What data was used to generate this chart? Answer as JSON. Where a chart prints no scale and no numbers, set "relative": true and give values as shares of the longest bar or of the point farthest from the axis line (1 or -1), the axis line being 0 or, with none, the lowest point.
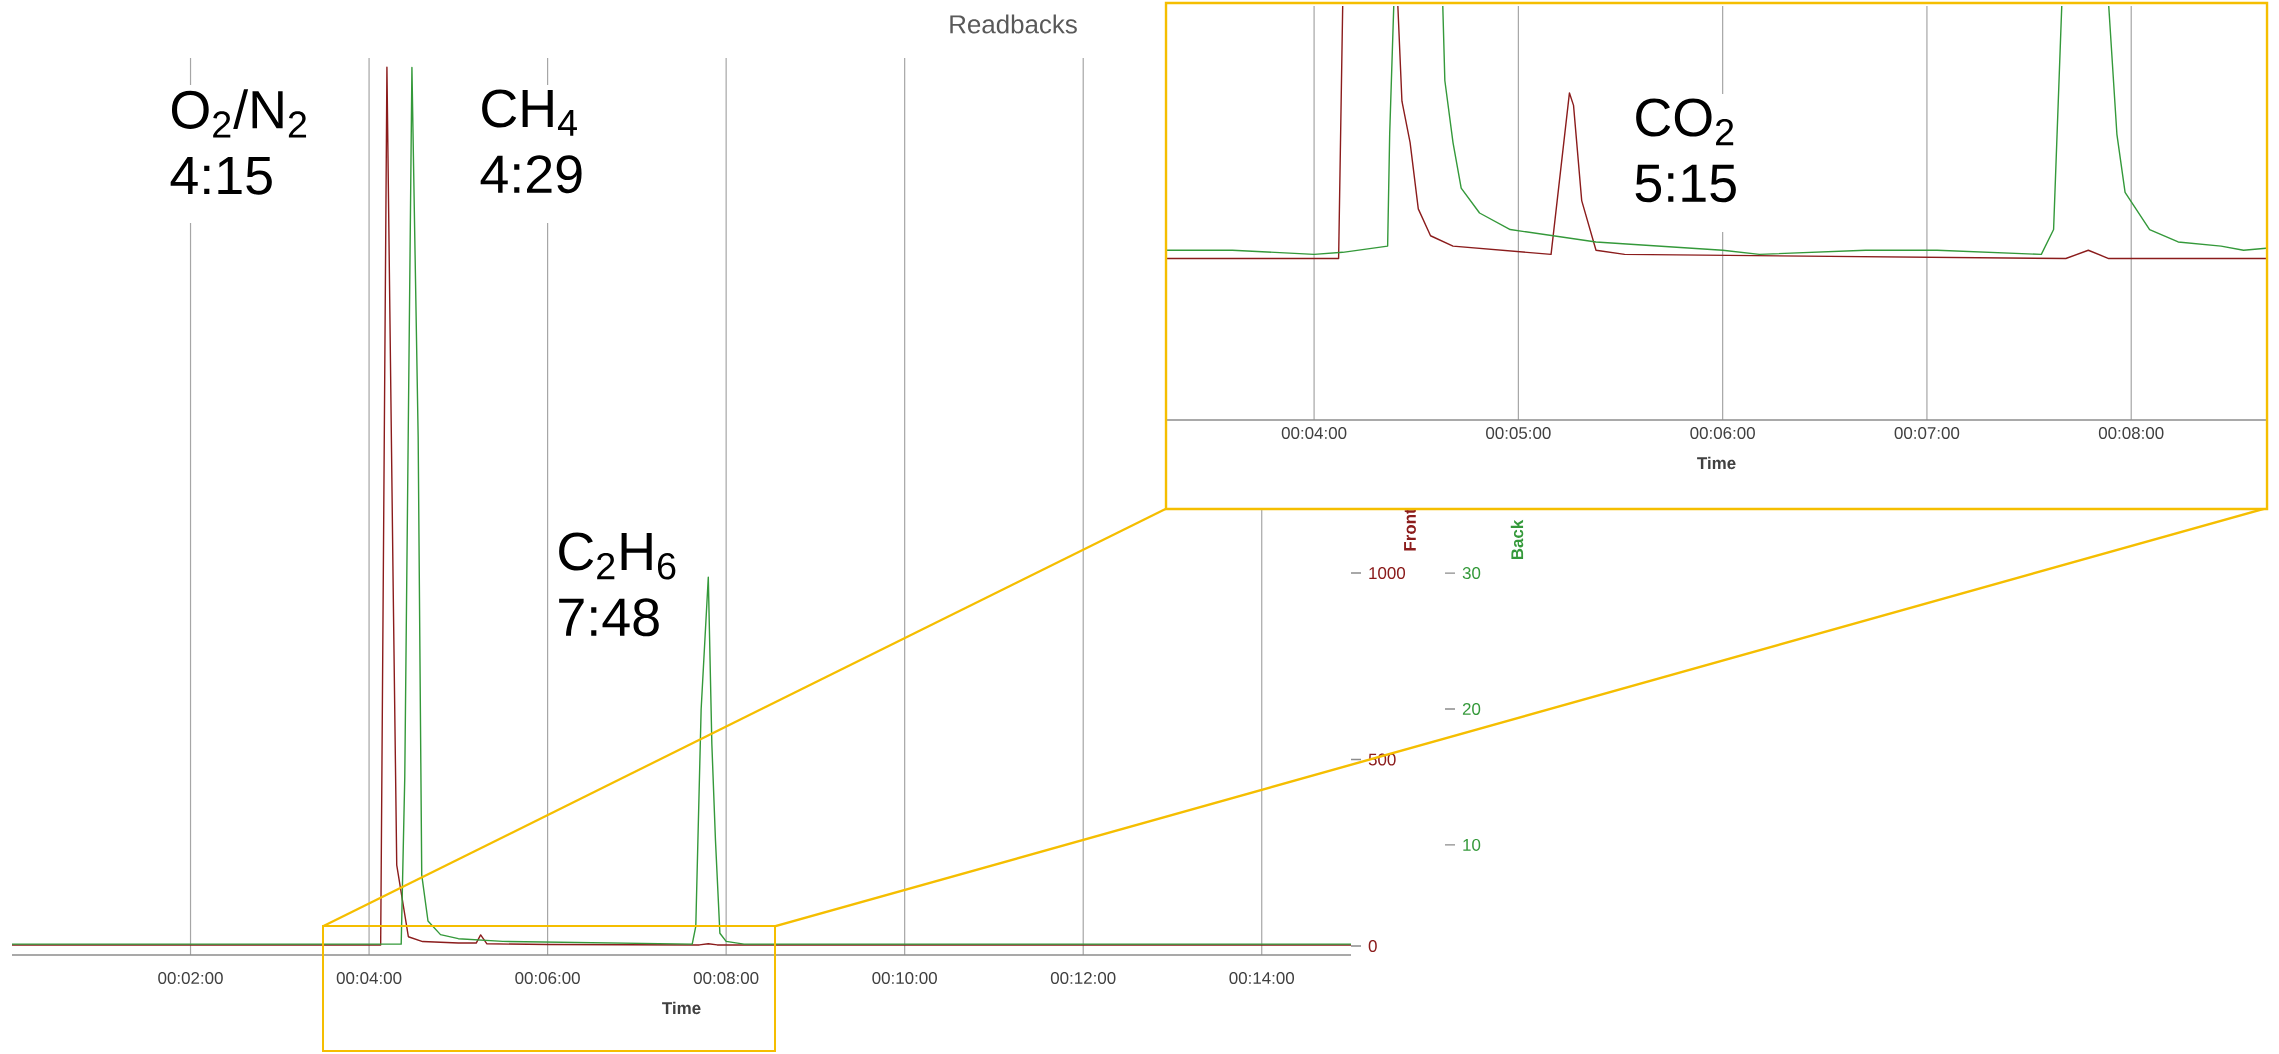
{
  "chart_data": [
    {
      "type": "line",
      "title": "Readbacks",
      "xlabel": "Time",
      "ylabel": "Front",
      "y2label": "Back",
      "grid": "x",
      "xlim": [
        0,
        15
      ],
      "xticks": [
        {
          "value": 2,
          "label": "00:02:00"
        },
        {
          "value": 4,
          "label": "00:04:00"
        },
        {
          "value": 6,
          "label": "00:06:00"
        },
        {
          "value": 8,
          "label": "00:08:00"
        },
        {
          "value": 10,
          "label": "00:10:00"
        },
        {
          "value": 12,
          "label": "00:12:00"
        },
        {
          "value": 14,
          "label": "00:14:00"
        }
      ],
      "ylim": [
        -24,
        2381
      ],
      "yticks": [
        0,
        500,
        1000
      ],
      "y2lim": [
        1.9,
        67.9
      ],
      "y2ticks": [
        10,
        20,
        30
      ],
      "series": [
        {
          "color": "#8b1c1c",
          "x": [
            0,
            4.13,
            4.2,
            4.27,
            4.31,
            4.44,
            4.6,
            5.0,
            5.2,
            5.25,
            5.32,
            6.0,
            7.7,
            7.8,
            7.9,
            15
          ],
          "values": [
            3,
            3,
            2356,
            962,
            217,
            25,
            12,
            8,
            8,
            30,
            6,
            4,
            3,
            6,
            3,
            3
          ]
        },
        {
          "color": "#34993a",
          "axis": "y2",
          "x": [
            0,
            4.36,
            4.4,
            4.48,
            4.55,
            4.59,
            4.66,
            4.8,
            5.0,
            5.5,
            7.62,
            7.66,
            7.72,
            7.8,
            7.84,
            7.88,
            7.93,
            8.0,
            8.2,
            15
          ],
          "values": [
            2.7,
            2.7,
            15,
            67.2,
            40,
            7.8,
            4.4,
            3.4,
            3.1,
            2.9,
            2.7,
            4,
            20,
            29.7,
            17.4,
            10.4,
            3.5,
            2.9,
            2.7,
            2.7
          ]
        }
      ],
      "annotations": [
        "O$_{2}$/N$_{2}$ 4:15",
        "CH$_{4}$ 4:29",
        "C$_{2}$H$_{6}$ 7:48"
      ]
    },
    {
      "type": "line",
      "relative": true,
      "xlabel": "Time",
      "grid": "x",
      "tick_labels": "x",
      "xlim": [
        3.28,
        8.66
      ],
      "xticks": [
        {
          "value": 4,
          "label": "00:04:00"
        },
        {
          "value": 5,
          "label": "00:05:00"
        },
        {
          "value": 6,
          "label": "00:06:00"
        },
        {
          "value": 7,
          "label": "00:07:00"
        },
        {
          "value": 8,
          "label": "00:08:00"
        }
      ],
      "series": [
        {
          "color": "#8b1c1c",
          "x": [
            3.28,
            4.12,
            4.14,
            4.28,
            4.41,
            4.43,
            4.47,
            4.51,
            4.57,
            4.68,
            5.16,
            5.25,
            5.27,
            5.31,
            5.38,
            5.52,
            7.68,
            7.79,
            7.89,
            8.66
          ],
          "values": [
            0.39,
            0.39,
            1,
            null,
            1,
            0.77,
            0.67,
            0.51,
            0.445,
            0.42,
            0.4,
            0.79,
            0.76,
            0.53,
            0.41,
            0.4,
            0.39,
            0.41,
            0.39,
            0.39
          ]
        },
        {
          "color": "#34993a",
          "x": [
            3.28,
            3.6,
            4.0,
            4.14,
            4.36,
            4.37,
            4.39,
            4.5,
            4.63,
            4.64,
            4.68,
            4.72,
            4.81,
            4.96,
            5.17,
            5.38,
            6.0,
            6.18,
            6.7,
            7.05,
            7.56,
            7.62,
            7.66,
            7.8,
            7.89,
            7.93,
            7.97,
            8.09,
            8.23,
            8.44,
            8.55,
            8.66
          ],
          "values": [
            0.41,
            0.41,
            0.4,
            0.405,
            0.42,
            0.69,
            1,
            null,
            1,
            0.82,
            0.67,
            0.56,
            0.5,
            0.46,
            0.445,
            0.43,
            0.41,
            0.4,
            0.41,
            0.41,
            0.4,
            0.46,
            1,
            null,
            1,
            0.69,
            0.55,
            0.46,
            0.43,
            0.42,
            0.41,
            0.415
          ]
        }
      ],
      "annotations": [
        "CO$_{2}$ 5:15"
      ]
    }
  ]
}
